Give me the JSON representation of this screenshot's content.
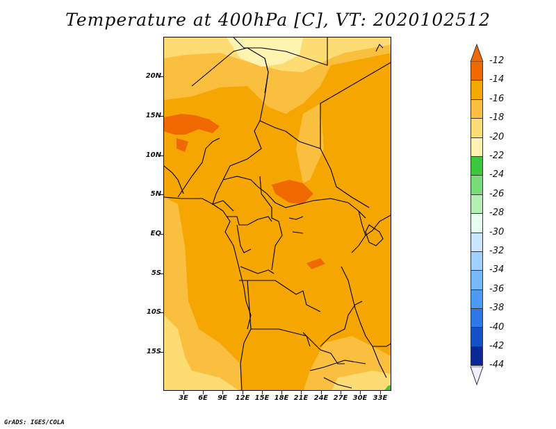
{
  "title": "Temperature at 400hPa [C], VT: 2020102512",
  "credit": "GrADS: IGES/COLA",
  "map": {
    "lat_labels": [
      "20N",
      "15N",
      "10N",
      "5N",
      "EQ",
      "5S",
      "10S",
      "15S"
    ],
    "lon_labels": [
      "3E",
      "6E",
      "9E",
      "12E",
      "15E",
      "18E",
      "21E",
      "24E",
      "27E",
      "30E",
      "33E"
    ],
    "dominant_range": "-16 to -14"
  },
  "colorbar": {
    "labels": [
      "-12",
      "-14",
      "-16",
      "-18",
      "-20",
      "-22",
      "-24",
      "-26",
      "-28",
      "-30",
      "-32",
      "-34",
      "-36",
      "-38",
      "-40",
      "-42",
      "-44"
    ],
    "colors": [
      "#F06800",
      "#F5A600",
      "#FBBF3F",
      "#FDDC74",
      "#FEF4B2",
      "#3CC83C",
      "#78DC78",
      "#B4F0B4",
      "#E6FFF0",
      "#C8E6FF",
      "#A0D2FF",
      "#78B9FA",
      "#4B9BF5",
      "#2D78E6",
      "#1450C8",
      "#0A2896"
    ],
    "top_color": "#F06800",
    "bottom_color": "#F0F0FF"
  }
}
